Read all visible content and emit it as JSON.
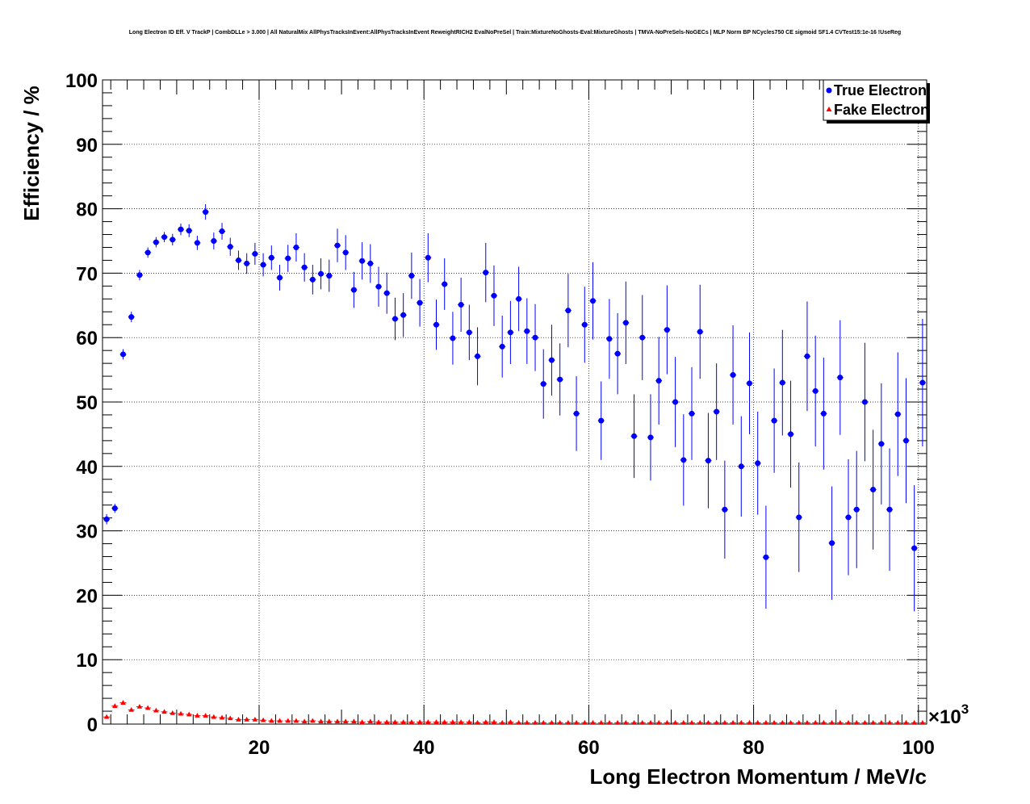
{
  "chart_data": {
    "type": "scatter",
    "title": "Long Electron ID Eff. V TrackP | CombDLLe > 3.000 | All NaturalMix AllPhysTracksInEvent:AllPhysTracksInEvent ReweightRICH2 EvalNoPreSel | Train:MixtureNoGhosts-Eval:MixtureGhosts | TMVA-NoPreSels-NoGECs | MLP Norm BP NCycles750 CE sigmoid SF1.4 CVTest15:1e-16 !UseReg",
    "xlabel": "Long Electron Momentum / MeV/c",
    "ylabel": "Efficiency / %",
    "x_multiplier_label": "×10",
    "x_multiplier_exp": "3",
    "xlim": [
      1,
      101
    ],
    "ylim": [
      0,
      100
    ],
    "x_ticks": [
      "20",
      "40",
      "60",
      "80",
      "100"
    ],
    "x_tick_values": [
      20,
      40,
      60,
      80,
      100
    ],
    "y_ticks": [
      "0",
      "10",
      "20",
      "30",
      "40",
      "50",
      "60",
      "70",
      "80",
      "90",
      "100"
    ],
    "y_tick_values": [
      0,
      10,
      20,
      30,
      40,
      50,
      60,
      70,
      80,
      90,
      100
    ],
    "grid": true,
    "legend_position": "top-right",
    "series": [
      {
        "name": "True Electron",
        "color": "#0000ff",
        "marker": "circle",
        "x": [
          1.5,
          2.5,
          3.5,
          4.5,
          5.5,
          6.5,
          7.5,
          8.5,
          9.5,
          10.5,
          11.5,
          12.5,
          13.5,
          14.5,
          15.5,
          16.5,
          17.5,
          18.5,
          19.5,
          20.5,
          21.5,
          22.5,
          23.5,
          24.5,
          25.5,
          26.5,
          27.5,
          28.5,
          29.5,
          30.5,
          31.5,
          32.5,
          33.5,
          34.5,
          35.5,
          36.5,
          37.5,
          38.5,
          39.5,
          40.5,
          41.5,
          42.5,
          43.5,
          44.5,
          45.5,
          46.5,
          47.5,
          48.5,
          49.5,
          50.5,
          51.5,
          52.5,
          53.5,
          54.5,
          55.5,
          56.5,
          57.5,
          58.5,
          59.5,
          60.5,
          61.5,
          62.5,
          63.5,
          64.5,
          65.5,
          66.5,
          67.5,
          68.5,
          69.5,
          70.5,
          71.5,
          72.5,
          73.5,
          74.5,
          75.5,
          76.5,
          77.5,
          78.5,
          79.5,
          80.5,
          81.5,
          82.5,
          83.5,
          84.5,
          85.5,
          86.5,
          87.5,
          88.5,
          89.5,
          90.5,
          91.5,
          92.5,
          93.5,
          94.5,
          95.5,
          96.5,
          97.5,
          98.5,
          99.5,
          100.5
        ],
        "y": [
          31.8,
          33.5,
          57.4,
          63.2,
          69.7,
          73.2,
          74.8,
          75.6,
          75.2,
          76.8,
          76.6,
          74.7,
          79.5,
          75.0,
          76.5,
          74.1,
          72.0,
          71.5,
          73.0,
          71.3,
          72.4,
          69.3,
          72.3,
          74.0,
          70.9,
          69.0,
          69.9,
          69.6,
          74.3,
          73.2,
          67.4,
          71.9,
          71.5,
          67.9,
          66.9,
          62.9,
          63.5,
          69.6,
          65.4,
          72.4,
          62.0,
          68.3,
          59.9,
          65.1,
          60.8,
          57.1,
          70.1,
          66.5,
          58.6,
          60.8,
          66.0,
          61.0,
          60.0,
          52.8,
          56.5,
          53.5,
          64.2,
          48.2,
          62.0,
          65.7,
          47.1,
          59.8,
          57.5,
          62.3,
          44.7,
          60.0,
          44.5,
          53.3,
          61.2,
          50.0,
          41.0,
          48.2,
          60.9,
          40.9,
          48.5,
          33.3,
          54.2,
          40.0,
          52.9,
          40.5,
          25.9,
          47.1,
          53.0,
          45.0,
          32.1,
          57.1,
          51.7,
          48.2,
          28.1,
          53.8,
          32.1,
          33.3,
          50.0,
          36.4,
          43.5,
          33.3,
          48.1,
          44.0,
          27.3,
          53.0
        ],
        "err": [
          0.8,
          0.7,
          0.8,
          0.8,
          0.8,
          0.8,
          0.8,
          0.8,
          0.9,
          0.9,
          1.0,
          1.1,
          1.2,
          1.3,
          1.3,
          1.4,
          1.5,
          1.6,
          1.7,
          1.8,
          1.9,
          2.0,
          2.1,
          2.2,
          2.2,
          2.3,
          2.4,
          2.5,
          2.6,
          2.7,
          2.8,
          2.9,
          3.0,
          3.1,
          3.2,
          3.3,
          3.4,
          3.6,
          3.7,
          3.8,
          3.9,
          4.0,
          4.1,
          4.2,
          4.3,
          4.5,
          4.6,
          4.7,
          4.8,
          4.9,
          5.0,
          5.1,
          5.2,
          5.4,
          5.5,
          5.6,
          5.7,
          5.8,
          5.9,
          6.0,
          6.1,
          6.2,
          6.3,
          6.4,
          6.5,
          6.6,
          6.7,
          6.8,
          6.9,
          7.0,
          7.1,
          7.2,
          7.3,
          7.4,
          7.5,
          7.6,
          7.7,
          7.8,
          7.9,
          8.0,
          8.0,
          8.1,
          8.2,
          8.3,
          8.5,
          8.5,
          8.6,
          8.7,
          8.8,
          8.9,
          9.0,
          9.1,
          9.2,
          9.3,
          9.4,
          9.5,
          9.6,
          9.7,
          9.8,
          9.9
        ]
      },
      {
        "name": "Fake Electron",
        "color": "#ff0000",
        "marker": "triangle",
        "x": [
          1.5,
          2.5,
          3.5,
          4.5,
          5.5,
          6.5,
          7.5,
          8.5,
          9.5,
          10.5,
          11.5,
          12.5,
          13.5,
          14.5,
          15.5,
          16.5,
          17.5,
          18.5,
          19.5,
          20.5,
          21.5,
          22.5,
          23.5,
          24.5,
          25.5,
          26.5,
          27.5,
          28.5,
          29.5,
          30.5,
          31.5,
          32.5,
          33.5,
          34.5,
          35.5,
          36.5,
          37.5,
          38.5,
          39.5,
          40.5,
          41.5,
          42.5,
          43.5,
          44.5,
          45.5,
          46.5,
          47.5,
          48.5,
          49.5,
          50.5,
          51.5,
          52.5,
          53.5,
          54.5,
          55.5,
          56.5,
          57.5,
          58.5,
          59.5,
          60.5,
          61.5,
          62.5,
          63.5,
          64.5,
          65.5,
          66.5,
          67.5,
          68.5,
          69.5,
          70.5,
          71.5,
          72.5,
          73.5,
          74.5,
          75.5,
          76.5,
          77.5,
          78.5,
          79.5,
          80.5,
          81.5,
          82.5,
          83.5,
          84.5,
          85.5,
          86.5,
          87.5,
          88.5,
          89.5,
          90.5,
          91.5,
          92.5,
          93.5,
          94.5,
          95.5,
          96.5,
          97.5,
          98.5,
          99.5,
          100.5
        ],
        "y": [
          1.1,
          2.8,
          3.3,
          2.2,
          2.7,
          2.5,
          2.1,
          1.9,
          1.7,
          1.6,
          1.5,
          1.3,
          1.3,
          1.1,
          1.0,
          0.9,
          0.7,
          0.7,
          0.7,
          0.6,
          0.5,
          0.5,
          0.5,
          0.5,
          0.4,
          0.5,
          0.4,
          0.4,
          0.4,
          0.4,
          0.4,
          0.3,
          0.4,
          0.3,
          0.3,
          0.3,
          0.3,
          0.3,
          0.3,
          0.3,
          0.3,
          0.3,
          0.3,
          0.3,
          0.3,
          0.2,
          0.3,
          0.3,
          0.2,
          0.3,
          0.2,
          0.2,
          0.2,
          0.2,
          0.2,
          0.2,
          0.2,
          0.2,
          0.2,
          0.2,
          0.2,
          0.2,
          0.2,
          0.2,
          0.2,
          0.2,
          0.2,
          0.2,
          0.2,
          0.2,
          0.2,
          0.2,
          0.2,
          0.2,
          0.2,
          0.2,
          0.2,
          0.2,
          0.2,
          0.2,
          0.2,
          0.2,
          0.2,
          0.2,
          0.2,
          0.2,
          0.2,
          0.2,
          0.2,
          0.2,
          0.2,
          0.2,
          0.2,
          0.2,
          0.2,
          0.2,
          0.2,
          0.2,
          0.2,
          0.2
        ],
        "err": [
          0.15,
          0.15,
          0.15,
          0.15,
          0.15,
          0.15,
          0.1,
          0.1,
          0.1,
          0.1,
          0.1,
          0.1,
          0.1,
          0.1,
          0.1,
          0.1,
          0.1,
          0.1,
          0.1,
          0.1,
          0.1,
          0.1,
          0.1,
          0.1,
          0.1,
          0.1,
          0.1,
          0.1,
          0.1,
          0.1,
          0.1,
          0.1,
          0.1,
          0.1,
          0.1,
          0.1,
          0.1,
          0.1,
          0.1,
          0.1,
          0.1,
          0.1,
          0.1,
          0.1,
          0.1,
          0.1,
          0.1,
          0.1,
          0.1,
          0.1,
          0.1,
          0.1,
          0.1,
          0.1,
          0.1,
          0.1,
          0.1,
          0.1,
          0.1,
          0.1,
          0.1,
          0.1,
          0.1,
          0.1,
          0.1,
          0.1,
          0.1,
          0.1,
          0.1,
          0.1,
          0.1,
          0.1,
          0.1,
          0.1,
          0.1,
          0.1,
          0.1,
          0.1,
          0.1,
          0.1,
          0.1,
          0.1,
          0.1,
          0.1,
          0.1,
          0.1,
          0.1,
          0.1,
          0.1,
          0.1,
          0.1,
          0.1,
          0.1,
          0.1,
          0.1,
          0.1,
          0.1,
          0.1,
          0.1,
          0.1
        ]
      }
    ]
  }
}
